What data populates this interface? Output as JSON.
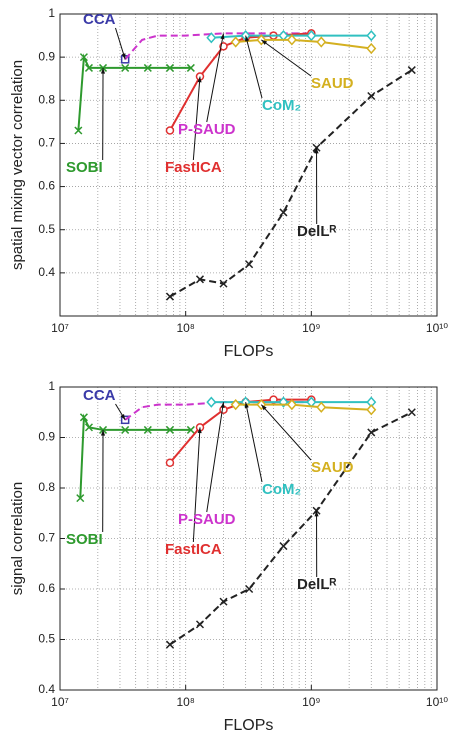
{
  "chart_data": [
    {
      "type": "line",
      "y_label": "spatial mixing vector correlation",
      "x_label": "FLOPs",
      "xscale": "log",
      "xlim": [
        10000000,
        10000000000
      ],
      "xticks": [
        {
          "value": 10000000,
          "label": "10⁷"
        },
        {
          "value": 100000000,
          "label": "10⁸"
        },
        {
          "value": 1000000000,
          "label": "10⁹"
        },
        {
          "value": 10000000000,
          "label": "10¹⁰"
        }
      ],
      "ylim": [
        0.3,
        1
      ],
      "yticks": [
        0.4,
        0.5,
        0.6,
        0.7,
        0.8,
        0.9,
        1
      ],
      "grid": true,
      "series": [
        {
          "name": "SOBI",
          "color": "#2e9a2e",
          "marker": "x",
          "dash": false,
          "x": [
            14000000,
            15500000,
            17000000,
            22000000,
            33000000,
            50000000,
            75000000,
            110000000
          ],
          "values": [
            0.73,
            0.9,
            0.875,
            0.875,
            0.875,
            0.875,
            0.875,
            0.875
          ]
        },
        {
          "name": "CCA",
          "color": "#3a3aa8",
          "marker": "square",
          "dash": false,
          "x": [
            33000000
          ],
          "values": [
            0.895
          ]
        },
        {
          "name": "P-SAUD",
          "color": "#cc33cc",
          "marker": "none",
          "dash": true,
          "x": [
            33000000,
            45000000,
            60000000,
            100000000,
            200000000,
            400000000,
            1000000000
          ],
          "values": [
            0.895,
            0.94,
            0.95,
            0.95,
            0.955,
            0.955,
            0.955
          ]
        },
        {
          "name": "FastICA",
          "color": "#e03030",
          "marker": "circle",
          "dash": false,
          "x": [
            75000000,
            130000000,
            200000000,
            300000000,
            500000000,
            1000000000
          ],
          "values": [
            0.73,
            0.855,
            0.925,
            0.945,
            0.95,
            0.955
          ]
        },
        {
          "name": "CoM₂",
          "color": "#30c0c0",
          "marker": "diamond",
          "dash": false,
          "x": [
            160000000,
            300000000,
            600000000,
            1000000000,
            3000000000
          ],
          "values": [
            0.945,
            0.95,
            0.95,
            0.95,
            0.95
          ]
        },
        {
          "name": "SAUD",
          "color": "#d4b020",
          "marker": "diamond",
          "dash": false,
          "x": [
            250000000,
            400000000,
            700000000,
            1200000000,
            3000000000
          ],
          "values": [
            0.935,
            0.94,
            0.94,
            0.935,
            0.92
          ]
        },
        {
          "name": "DelLᴿ",
          "color": "#222222",
          "marker": "x",
          "dash": true,
          "x": [
            75000000,
            130000000,
            200000000,
            320000000,
            600000000,
            1100000000,
            3000000000,
            6300000000
          ],
          "values": [
            0.345,
            0.385,
            0.375,
            0.42,
            0.54,
            0.69,
            0.81,
            0.87
          ]
        }
      ]
    },
    {
      "type": "line",
      "y_label": "signal correlation",
      "x_label": "FLOPs",
      "xscale": "log",
      "xlim": [
        10000000,
        10000000000
      ],
      "xticks": [
        {
          "value": 10000000,
          "label": "10⁷"
        },
        {
          "value": 100000000,
          "label": "10⁸"
        },
        {
          "value": 1000000000,
          "label": "10⁹"
        },
        {
          "value": 10000000000,
          "label": "10¹⁰"
        }
      ],
      "ylim": [
        0.4,
        1
      ],
      "yticks": [
        0.4,
        0.5,
        0.6,
        0.7,
        0.8,
        0.9,
        1
      ],
      "grid": true,
      "series": [
        {
          "name": "SOBI",
          "color": "#2e9a2e",
          "marker": "x",
          "dash": false,
          "x": [
            14500000,
            15500000,
            17000000,
            22000000,
            33000000,
            50000000,
            75000000,
            110000000
          ],
          "values": [
            0.78,
            0.94,
            0.92,
            0.915,
            0.915,
            0.915,
            0.915,
            0.915
          ]
        },
        {
          "name": "CCA",
          "color": "#3a3aa8",
          "marker": "square",
          "dash": false,
          "x": [
            33000000
          ],
          "values": [
            0.935
          ]
        },
        {
          "name": "P-SAUD",
          "color": "#cc33cc",
          "marker": "none",
          "dash": true,
          "x": [
            33000000,
            45000000,
            60000000,
            100000000,
            200000000,
            400000000,
            1000000000
          ],
          "values": [
            0.935,
            0.96,
            0.965,
            0.965,
            0.97,
            0.97,
            0.97
          ]
        },
        {
          "name": "FastICA",
          "color": "#e03030",
          "marker": "circle",
          "dash": false,
          "x": [
            75000000,
            130000000,
            200000000,
            300000000,
            500000000,
            1000000000
          ],
          "values": [
            0.85,
            0.92,
            0.955,
            0.97,
            0.975,
            0.975
          ]
        },
        {
          "name": "CoM₂",
          "color": "#30c0c0",
          "marker": "diamond",
          "dash": false,
          "x": [
            160000000,
            300000000,
            600000000,
            1000000000,
            3000000000
          ],
          "values": [
            0.97,
            0.97,
            0.97,
            0.97,
            0.97
          ]
        },
        {
          "name": "SAUD",
          "color": "#d4b020",
          "marker": "diamond",
          "dash": false,
          "x": [
            250000000,
            400000000,
            700000000,
            1200000000,
            3000000000
          ],
          "values": [
            0.965,
            0.965,
            0.965,
            0.96,
            0.955
          ]
        },
        {
          "name": "DelLᴿ",
          "color": "#222222",
          "marker": "x",
          "dash": true,
          "x": [
            75000000,
            130000000,
            200000000,
            320000000,
            600000000,
            1100000000,
            3000000000,
            6300000000
          ],
          "values": [
            0.49,
            0.53,
            0.575,
            0.6,
            0.685,
            0.755,
            0.91,
            0.95
          ]
        }
      ]
    }
  ]
}
